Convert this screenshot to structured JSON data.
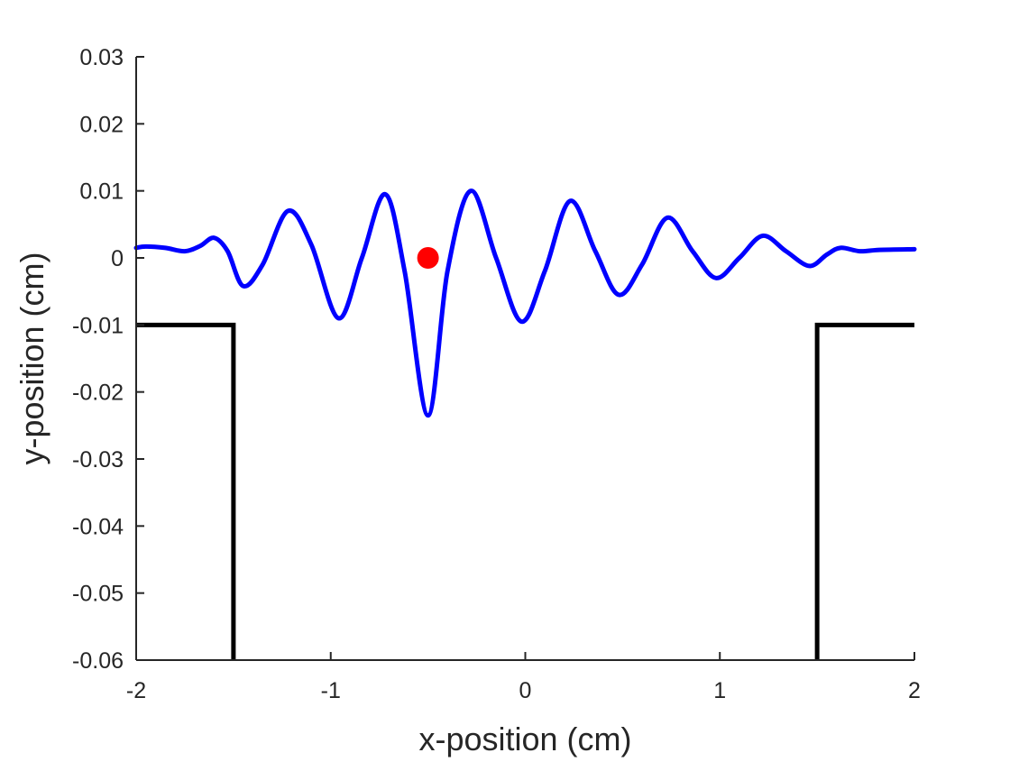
{
  "chart_data": {
    "type": "line",
    "title": "",
    "xlabel": "x-position (cm)",
    "ylabel": "y-position (cm)",
    "xlim": [
      -2,
      2
    ],
    "ylim": [
      -0.06,
      0.03
    ],
    "grid": false,
    "x_ticks": [
      -2,
      -1,
      0,
      1,
      2
    ],
    "x_tick_labels": [
      "-2",
      "-1",
      "0",
      "1",
      "2"
    ],
    "y_ticks": [
      0.03,
      0.02,
      0.01,
      0,
      -0.01,
      -0.02,
      -0.03,
      -0.04,
      -0.05,
      -0.06
    ],
    "y_tick_labels": [
      "0.03",
      "0.02",
      "0.01",
      "0",
      "-0.01",
      "-0.02",
      "-0.03",
      "-0.04",
      "-0.05",
      "-0.06"
    ],
    "series": [
      {
        "color": "#0000ff",
        "style": "line",
        "x": [
          -2.0,
          -1.95,
          -1.85,
          -1.75,
          -1.67,
          -1.6,
          -1.53,
          -1.45,
          -1.35,
          -1.22,
          -1.1,
          -0.96,
          -0.84,
          -0.72,
          -0.62,
          -0.5,
          -0.4,
          -0.28,
          -0.15,
          -0.02,
          0.1,
          0.23,
          0.36,
          0.48,
          0.6,
          0.73,
          0.86,
          0.98,
          1.1,
          1.22,
          1.34,
          1.46,
          1.55,
          1.62,
          1.72,
          1.82,
          2.0
        ],
        "y": [
          0.0015,
          0.0017,
          0.0015,
          0.001,
          0.0018,
          0.003,
          0.001,
          -0.0042,
          -0.001,
          0.007,
          0.002,
          -0.009,
          0.0,
          0.0095,
          -0.002,
          -0.0235,
          -0.002,
          0.01,
          0.0,
          -0.0095,
          -0.002,
          0.0085,
          0.001,
          -0.0055,
          -0.001,
          0.006,
          0.001,
          -0.003,
          0.0,
          0.0033,
          0.001,
          -0.0012,
          0.0005,
          0.0015,
          0.001,
          0.0012,
          0.0013
        ]
      },
      {
        "color": "#000000",
        "style": "line",
        "x": [
          -2,
          -1.5,
          -1.5
        ],
        "y": [
          -0.01,
          -0.01,
          -0.06
        ]
      },
      {
        "color": "#000000",
        "style": "line",
        "x": [
          1.5,
          1.5,
          2
        ],
        "y": [
          -0.06,
          -0.01,
          -0.01
        ]
      },
      {
        "color": "#ff0000",
        "style": "marker",
        "x": [
          -0.5
        ],
        "y": [
          0
        ]
      }
    ]
  }
}
